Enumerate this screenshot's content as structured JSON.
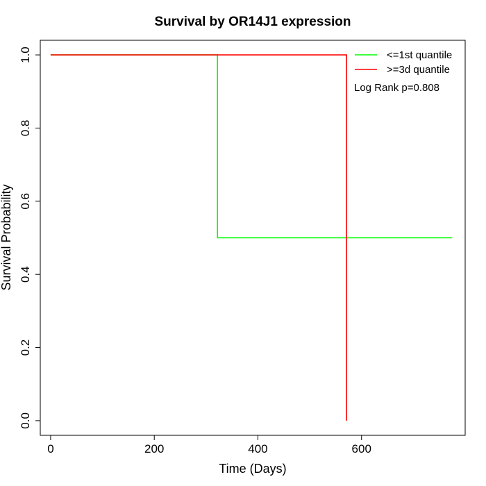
{
  "chart_data": {
    "type": "line",
    "title": "Survival by OR14J1 expression",
    "xlabel": "Time (Days)",
    "ylabel": "Survival Probability",
    "xlim": [
      -20,
      800
    ],
    "ylim": [
      -0.04,
      1.04
    ],
    "xticks": [
      0,
      200,
      400,
      600
    ],
    "yticks": [
      0.0,
      0.2,
      0.4,
      0.6,
      0.8,
      1.0
    ],
    "xtick_labels": [
      "0",
      "200",
      "400",
      "600"
    ],
    "ytick_labels": [
      "0.0",
      "0.2",
      "0.4",
      "0.6",
      "0.8",
      "1.0"
    ],
    "grid": false,
    "legend_position": "top-right",
    "annotation": "Log Rank p=0.808",
    "series": [
      {
        "name": "<=1st quantile",
        "color": "#00ff00",
        "step": true,
        "x": [
          0,
          322,
          322,
          775
        ],
        "y": [
          1.0,
          1.0,
          0.5,
          0.5
        ]
      },
      {
        "name": ">=3d quantile",
        "color": "#ff0000",
        "step": true,
        "x": [
          0,
          571,
          571
        ],
        "y": [
          1.0,
          1.0,
          0.0
        ]
      }
    ]
  }
}
